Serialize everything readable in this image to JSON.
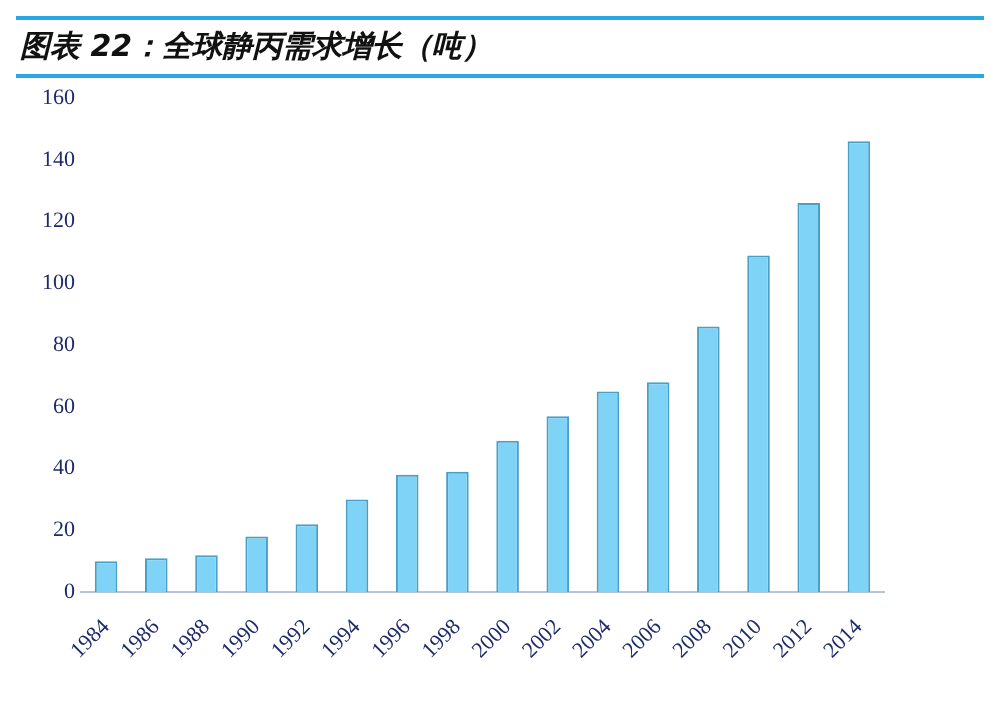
{
  "chart_data": {
    "type": "bar",
    "title": "图表 22：全球静丙需求增长（吨）",
    "categories": [
      "1984",
      "1986",
      "1988",
      "1990",
      "1992",
      "1994",
      "1996",
      "1998",
      "2000",
      "2002",
      "2004",
      "2006",
      "2008",
      "2010",
      "2012",
      "2014"
    ],
    "values": [
      10,
      11,
      12,
      18,
      22,
      30,
      38,
      39,
      49,
      57,
      65,
      68,
      86,
      109,
      126,
      146
    ],
    "color": "#7fd3f7",
    "ylim": [
      0,
      160
    ],
    "yticks": [
      0,
      20,
      40,
      60,
      80,
      100,
      120,
      140,
      160
    ],
    "grid": false,
    "legend": false
  }
}
